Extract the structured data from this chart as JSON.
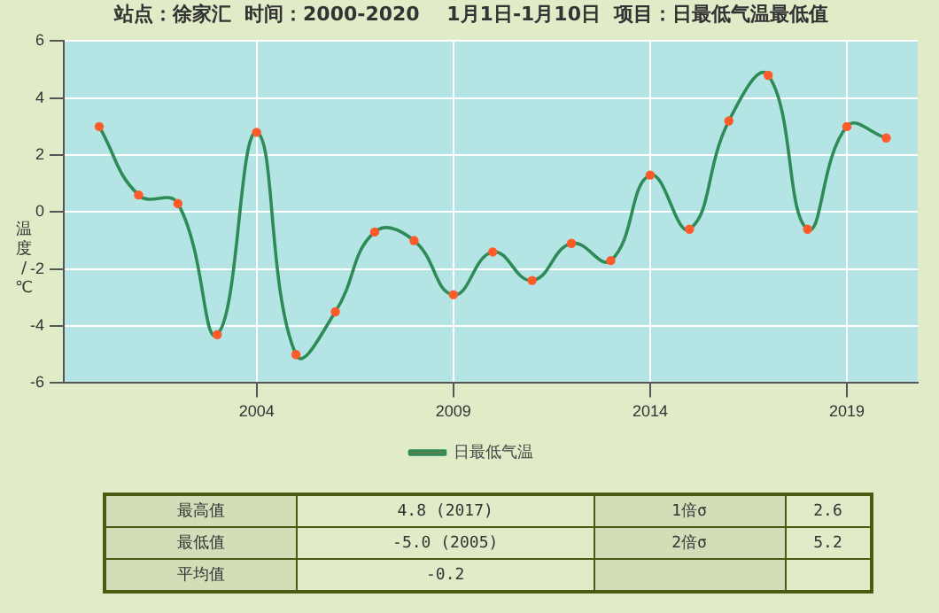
{
  "chart_data": {
    "type": "line",
    "title": "站点：徐家汇  时间：2000-2020    1月1日-1月10日  项目：日最低气温最低值",
    "ylabel": "温度/℃",
    "x": [
      2000,
      2001,
      2002,
      2003,
      2004,
      2005,
      2006,
      2007,
      2008,
      2009,
      2010,
      2011,
      2012,
      2013,
      2014,
      2015,
      2016,
      2017,
      2018,
      2019,
      2020
    ],
    "series": [
      {
        "name": "日最低气温",
        "color": "#2e8b57",
        "values": [
          3.0,
          0.6,
          0.3,
          -4.3,
          2.8,
          -5.0,
          -3.5,
          -0.7,
          -1.0,
          -2.9,
          -1.4,
          -2.4,
          -1.1,
          -1.7,
          1.3,
          -0.6,
          3.2,
          4.8,
          -0.6,
          3.0,
          2.6
        ]
      }
    ],
    "xlim": [
      1999.1,
      2020.8
    ],
    "xticks": [
      2004,
      2009,
      2014,
      2019
    ],
    "ylim": [
      -6,
      6
    ],
    "yticks": [
      -6,
      -4,
      -2,
      0,
      2,
      4,
      6
    ],
    "grid": true,
    "legend": "bottom",
    "marker": "circle",
    "line_style": "solid",
    "annotations": [
      "最高值",
      "4.8 (2017)",
      "1倍σ",
      "2.6",
      "最低值",
      "-5.0 (2005)",
      "2倍σ",
      "5.2",
      "平均值",
      "-0.2"
    ]
  }
}
